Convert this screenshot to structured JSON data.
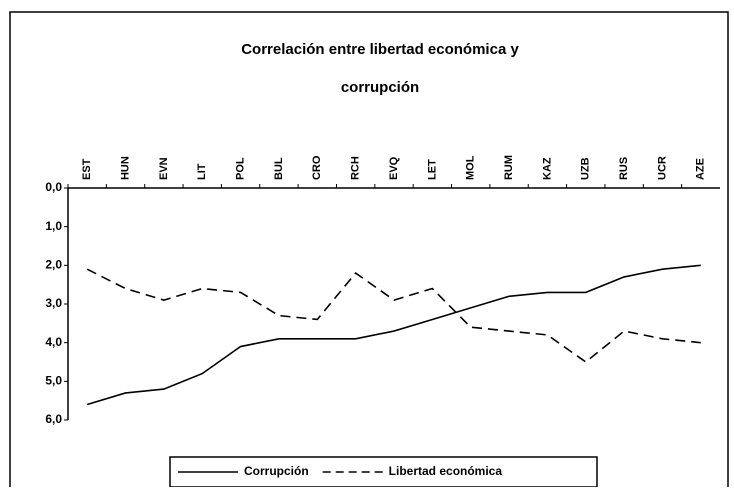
{
  "chart_data": {
    "type": "line",
    "title_lines": [
      "Correlación entre libertad económica y",
      "corrupción"
    ],
    "categories": [
      "EST",
      "HUN",
      "EVN",
      "LIT",
      "POL",
      "BUL",
      "CRO",
      "RCH",
      "EVQ",
      "LET",
      "MOL",
      "RUM",
      "KAZ",
      "UZB",
      "RUS",
      "UCR",
      "AZE"
    ],
    "series": [
      {
        "name": "Corrupción",
        "color": "#000000",
        "line_style": "solid",
        "values": [
          5.6,
          5.3,
          5.2,
          4.8,
          4.1,
          3.9,
          3.9,
          3.9,
          3.7,
          3.4,
          3.1,
          2.8,
          2.7,
          2.7,
          2.3,
          2.1,
          2.0
        ]
      },
      {
        "name": "Libertad económica",
        "color": "#000000",
        "line_style": "dashed",
        "values": [
          2.1,
          2.6,
          2.9,
          2.6,
          2.7,
          3.3,
          3.4,
          2.2,
          2.9,
          2.6,
          3.6,
          3.7,
          3.8,
          4.5,
          3.7,
          3.9,
          4.0
        ]
      }
    ],
    "ylim": [
      0,
      6
    ],
    "y_inverted": true,
    "yticks": [
      {
        "value": 0,
        "label": "0,0"
      },
      {
        "value": 1,
        "label": "1,0"
      },
      {
        "value": 2,
        "label": "2,0"
      },
      {
        "value": 3,
        "label": "3,0"
      },
      {
        "value": 4,
        "label": "4,0"
      },
      {
        "value": 5,
        "label": "5,0"
      },
      {
        "value": 6,
        "label": "6,0"
      }
    ],
    "grid": false,
    "legend": "bottom"
  }
}
